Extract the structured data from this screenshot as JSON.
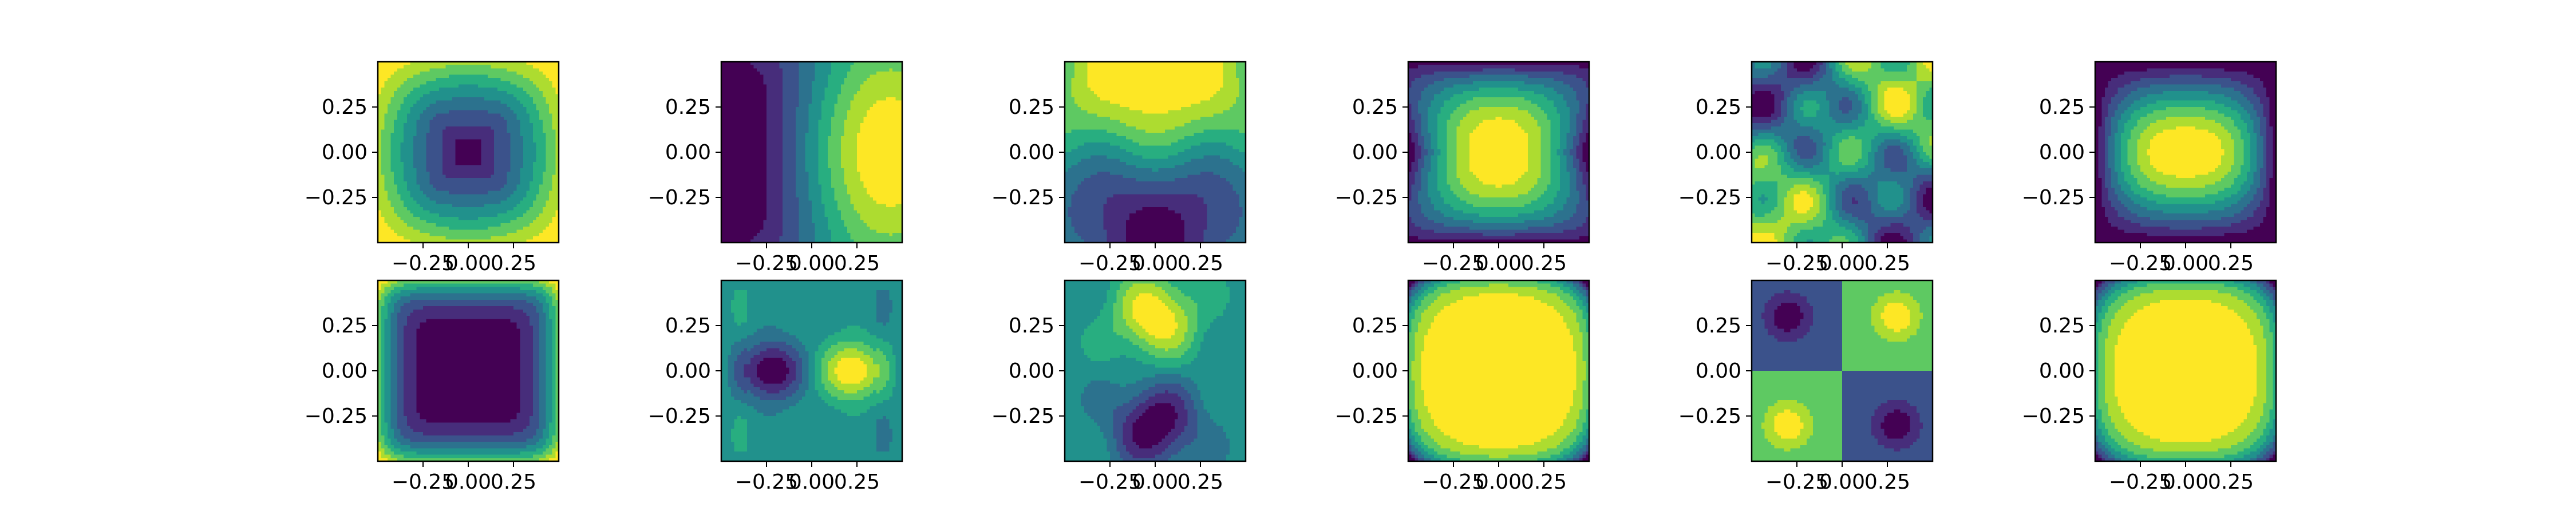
{
  "colors": {
    "palette": [
      "#440154",
      "#472d7b",
      "#3b528b",
      "#2c728e",
      "#21918c",
      "#28ae80",
      "#5ec962",
      "#addc30",
      "#fde725"
    ],
    "frame": "#000000",
    "background": "#ffffff"
  },
  "chart_data": {
    "type": "heatmap",
    "style": "filled contour plots of 2D fields, viridis colormap, 2 rows x 6 columns",
    "grid": false,
    "xlim": [
      -0.5,
      0.5
    ],
    "ylim": [
      -0.5,
      0.5
    ],
    "xticks": [
      -0.25,
      0.0,
      0.25
    ],
    "yticks": [
      -0.25,
      0.0,
      0.25
    ],
    "xtick_labels": [
      "−0.25",
      "0.00",
      "0.25"
    ],
    "ytick_labels": [
      "−0.25",
      "0.00",
      "0.25"
    ],
    "panels": [
      {
        "row": 0,
        "col": 0,
        "pattern": "square-bowl-low-center"
      },
      {
        "row": 0,
        "col": 1,
        "pattern": "dipole-x-low-left-high-right"
      },
      {
        "row": 0,
        "col": 2,
        "pattern": "dipole-y-high-top-low-bottom"
      },
      {
        "row": 0,
        "col": 3,
        "pattern": "peak-center-hourglass"
      },
      {
        "row": 0,
        "col": 4,
        "pattern": "saddle-corners-noisy"
      },
      {
        "row": 0,
        "col": 5,
        "pattern": "peak-center-pillow"
      },
      {
        "row": 1,
        "col": 0,
        "pattern": "square-bowl-low-center-sharp"
      },
      {
        "row": 1,
        "col": 1,
        "pattern": "dipole-x-low-left-high-right-noisy"
      },
      {
        "row": 1,
        "col": 2,
        "pattern": "dipole-y-high-top-low-bottom-noisy"
      },
      {
        "row": 1,
        "col": 3,
        "pattern": "plateau-center-star"
      },
      {
        "row": 1,
        "col": 4,
        "pattern": "quadrant-saddle"
      },
      {
        "row": 1,
        "col": 5,
        "pattern": "plateau-center-star-framed"
      }
    ]
  }
}
